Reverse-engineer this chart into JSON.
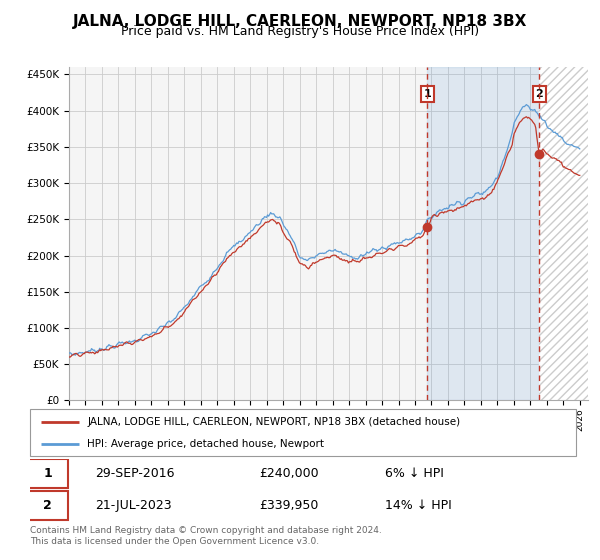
{
  "title": "JALNA, LODGE HILL, CAERLEON, NEWPORT, NP18 3BX",
  "subtitle": "Price paid vs. HM Land Registry's House Price Index (HPI)",
  "title_fontsize": 11,
  "subtitle_fontsize": 9,
  "legend_line1": "JALNA, LODGE HILL, CAERLEON, NEWPORT, NP18 3BX (detached house)",
  "legend_line2": "HPI: Average price, detached house, Newport",
  "sale1_date": "29-SEP-2016",
  "sale1_price": "£240,000",
  "sale1_pct": "6% ↓ HPI",
  "sale2_date": "21-JUL-2023",
  "sale2_price": "£339,950",
  "sale2_pct": "14% ↓ HPI",
  "footer": "Contains HM Land Registry data © Crown copyright and database right 2024.\nThis data is licensed under the Open Government Licence v3.0.",
  "hpi_color": "#5b9bd5",
  "sold_color": "#c0392b",
  "marker1_year": 2016.75,
  "marker1_value": 240000,
  "marker2_year": 2023.54,
  "marker2_value": 339950,
  "vline1_year": 2016.75,
  "vline2_year": 2023.54,
  "ylim": [
    0,
    460000
  ],
  "xlim_start": 1995.0,
  "xlim_end": 2026.5,
  "plot_bg": "#f5f5f5",
  "grid_color": "#cccccc"
}
